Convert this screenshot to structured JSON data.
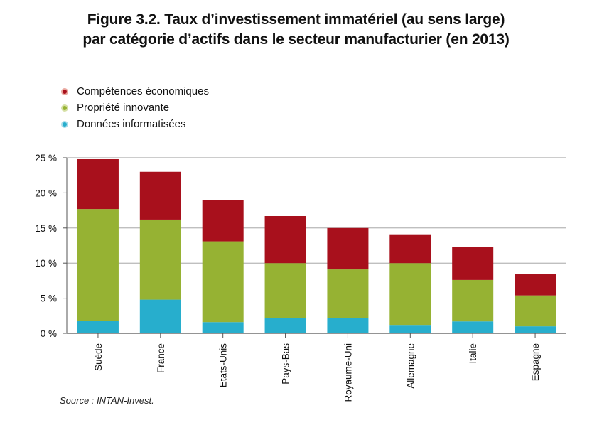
{
  "title_line1": "Figure 3.2. Taux d’investissement immatériel (au sens large)",
  "title_line2": "par catégorie d’actifs dans le secteur manufacturier (en 2013)",
  "legend": [
    {
      "label": "Compétences économiques",
      "color": "#a8101c",
      "ring": "#e9a79f"
    },
    {
      "label": "Propriété innovante",
      "color": "#96b233",
      "ring": "#d5e0a4"
    },
    {
      "label": "Données informatisées",
      "color": "#27aecd",
      "ring": "#a9dcea"
    }
  ],
  "source": "Source : INTAN-Invest.",
  "chart_data": {
    "type": "bar",
    "stacked": true,
    "categories": [
      "Suède",
      "France",
      "Etats-Unis",
      "Pays-Bas",
      "Royaume-Uni",
      "Allemagne",
      "Italie",
      "Espagne"
    ],
    "series": [
      {
        "name": "Données informatisées",
        "color": "#27aecd",
        "values": [
          1.8,
          4.8,
          1.6,
          2.2,
          2.2,
          1.2,
          1.7,
          1.0
        ]
      },
      {
        "name": "Propriété innovante",
        "color": "#96b233",
        "values": [
          15.9,
          11.4,
          11.5,
          7.8,
          6.9,
          8.8,
          5.9,
          4.4
        ]
      },
      {
        "name": "Compétences économiques",
        "color": "#a8101c",
        "values": [
          7.1,
          6.8,
          5.9,
          6.7,
          5.9,
          4.1,
          4.7,
          3.0
        ]
      }
    ],
    "yticks": [
      "0 %",
      "5 %",
      "10 %",
      "15 %",
      "20 %",
      "25 %"
    ],
    "ylim": [
      0,
      25
    ],
    "grid": true
  }
}
